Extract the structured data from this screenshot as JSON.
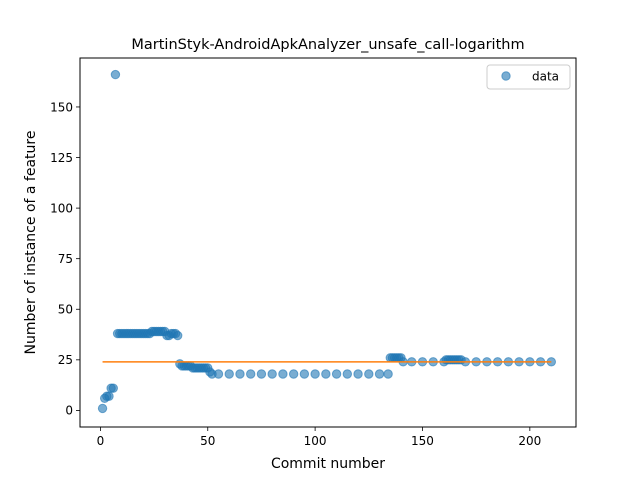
{
  "chart_data": {
    "type": "scatter",
    "title": "MartinStyk-AndroidApkAnalyzer_unsafe_call-logarithm",
    "xlabel": "Commit number",
    "ylabel": "Number of instance of a feature",
    "xlim": [
      -9.5,
      221.5
    ],
    "ylim": [
      -8.2,
      174.2
    ],
    "xticks": [
      0,
      50,
      100,
      150,
      200
    ],
    "yticks": [
      0,
      25,
      50,
      75,
      100,
      125,
      150
    ],
    "grid": false,
    "legend_position": "top-right",
    "series": [
      {
        "name": "data",
        "kind": "scatter",
        "color": "#1f77b4",
        "points": [
          [
            1,
            1
          ],
          [
            2,
            6
          ],
          [
            3,
            7
          ],
          [
            4,
            7
          ],
          [
            5,
            11
          ],
          [
            6,
            11
          ],
          [
            7,
            166
          ],
          [
            8,
            38
          ],
          [
            9,
            38
          ],
          [
            10,
            38
          ],
          [
            11,
            38
          ],
          [
            12,
            38
          ],
          [
            13,
            38
          ],
          [
            14,
            38
          ],
          [
            15,
            38
          ],
          [
            16,
            38
          ],
          [
            17,
            38
          ],
          [
            18,
            38
          ],
          [
            19,
            38
          ],
          [
            20,
            38
          ],
          [
            21,
            38
          ],
          [
            22,
            38
          ],
          [
            23,
            38
          ],
          [
            24,
            39
          ],
          [
            25,
            39
          ],
          [
            26,
            39
          ],
          [
            27,
            39
          ],
          [
            28,
            39
          ],
          [
            29,
            39
          ],
          [
            30,
            39
          ],
          [
            31,
            37
          ],
          [
            32,
            37
          ],
          [
            33,
            38
          ],
          [
            34,
            38
          ],
          [
            35,
            38
          ],
          [
            36,
            37
          ],
          [
            37,
            23
          ],
          [
            38,
            22
          ],
          [
            39,
            22
          ],
          [
            40,
            22
          ],
          [
            41,
            22
          ],
          [
            42,
            22
          ],
          [
            43,
            21
          ],
          [
            44,
            21
          ],
          [
            45,
            21
          ],
          [
            46,
            21
          ],
          [
            47,
            21
          ],
          [
            48,
            21
          ],
          [
            49,
            21
          ],
          [
            50,
            21
          ],
          [
            51,
            19
          ],
          [
            52,
            18
          ],
          [
            55,
            18
          ],
          [
            60,
            18
          ],
          [
            65,
            18
          ],
          [
            70,
            18
          ],
          [
            75,
            18
          ],
          [
            80,
            18
          ],
          [
            85,
            18
          ],
          [
            90,
            18
          ],
          [
            95,
            18
          ],
          [
            100,
            18
          ],
          [
            105,
            18
          ],
          [
            110,
            18
          ],
          [
            115,
            18
          ],
          [
            120,
            18
          ],
          [
            125,
            18
          ],
          [
            130,
            18
          ],
          [
            134,
            18
          ],
          [
            135,
            26
          ],
          [
            136,
            26
          ],
          [
            137,
            26
          ],
          [
            138,
            26
          ],
          [
            139,
            26
          ],
          [
            140,
            26
          ],
          [
            141,
            24
          ],
          [
            145,
            24
          ],
          [
            150,
            24
          ],
          [
            155,
            24
          ],
          [
            160,
            24
          ],
          [
            161,
            25
          ],
          [
            162,
            25
          ],
          [
            163,
            25
          ],
          [
            164,
            25
          ],
          [
            165,
            25
          ],
          [
            166,
            25
          ],
          [
            167,
            25
          ],
          [
            168,
            25
          ],
          [
            170,
            24
          ],
          [
            175,
            24
          ],
          [
            180,
            24
          ],
          [
            185,
            24
          ],
          [
            190,
            24
          ],
          [
            195,
            24
          ],
          [
            200,
            24
          ],
          [
            205,
            24
          ],
          [
            210,
            24
          ]
        ]
      },
      {
        "kind": "line",
        "color": "#ff7f0e",
        "points": [
          [
            1,
            24
          ],
          [
            210,
            24
          ]
        ]
      }
    ]
  }
}
